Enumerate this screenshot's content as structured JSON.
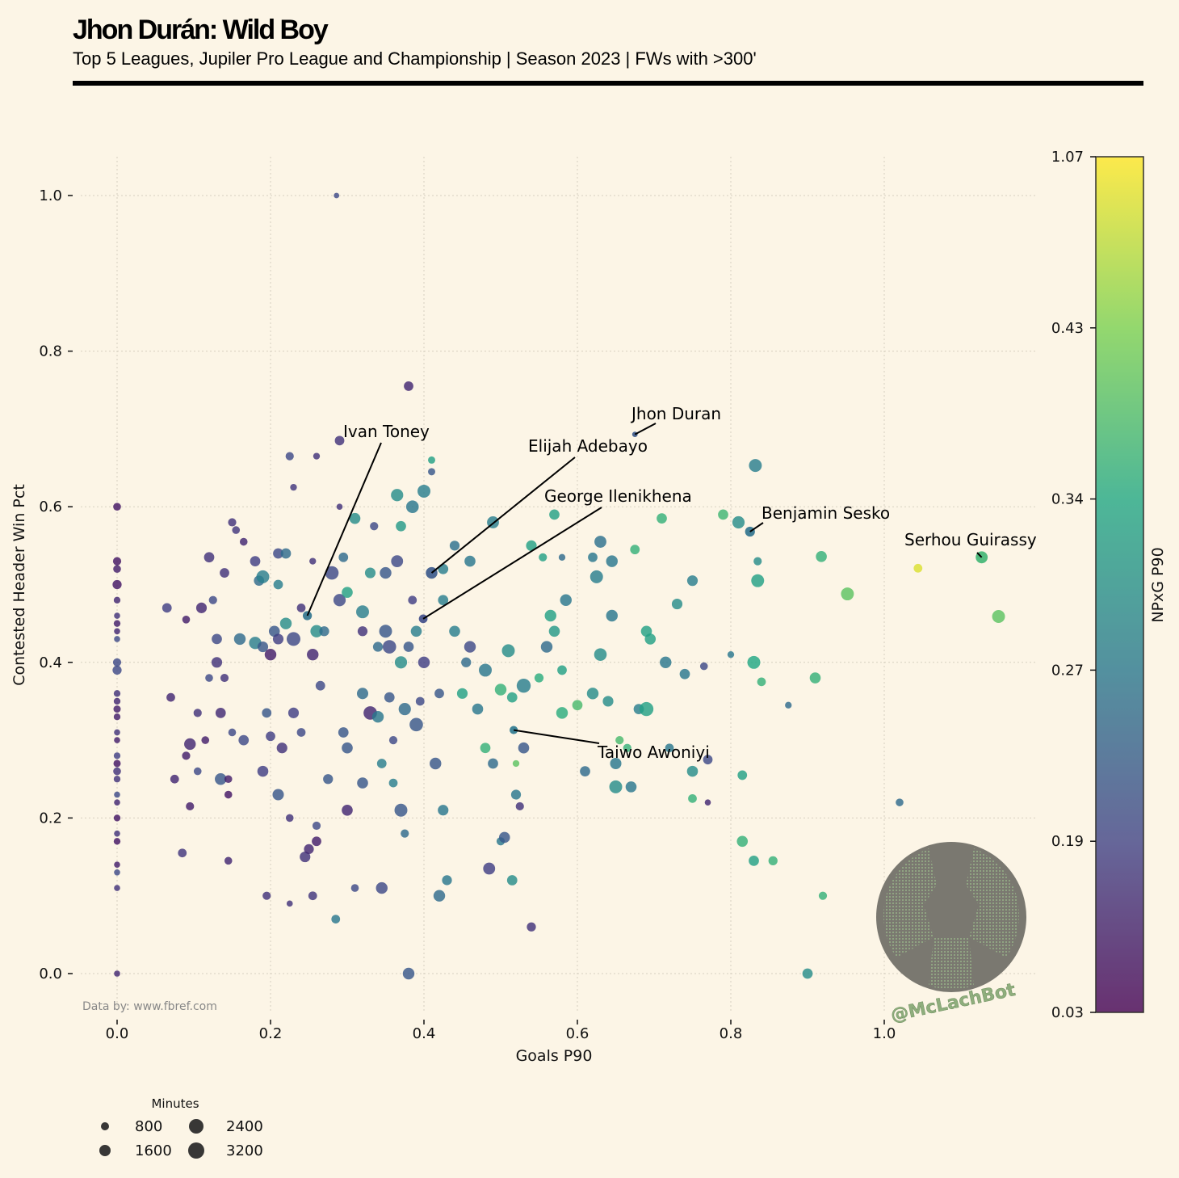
{
  "header": {
    "title": "Jhon Durán: Wild Boy",
    "subtitle": "Top 5 Leagues, Jupiler Pro League and Championship | Season 2023 | FWs with >300'"
  },
  "source": "Data by: www.fbref.com",
  "watermark": "@McLachBot",
  "chart_data": {
    "type": "scatter",
    "xlabel": "Goals P90",
    "ylabel": "Contested Header Win Pct",
    "xlim": [
      -0.06,
      1.2
    ],
    "ylim": [
      -0.05,
      1.05
    ],
    "xticks": [
      "0.0",
      "0.2",
      "0.4",
      "0.6",
      "0.8",
      "1.0"
    ],
    "yticks": [
      "0.0",
      "0.2",
      "0.4",
      "0.6",
      "0.8",
      "1.0"
    ],
    "grid": true,
    "colorbar": {
      "label": "NPxG P90",
      "ticks": [
        "0.03",
        "0.19",
        "0.27",
        "0.34",
        "0.43",
        "1.07"
      ]
    },
    "size_legend": {
      "title": "Minutes",
      "entries": [
        "800",
        "1600",
        "2400",
        "3200"
      ],
      "placement": "bottom-left"
    },
    "annotations": [
      {
        "name": "Jhon Duran",
        "x": 0.675,
        "y": 0.693,
        "npxg": 0.22,
        "minutes": 400
      },
      {
        "name": "Ivan Toney",
        "x": 0.248,
        "y": 0.46,
        "npxg": 0.26,
        "minutes": 1100
      },
      {
        "name": "Elijah Adebayo",
        "x": 0.41,
        "y": 0.515,
        "npxg": 0.22,
        "minutes": 1800
      },
      {
        "name": "George Ilenikhena",
        "x": 0.399,
        "y": 0.456,
        "npxg": 0.2,
        "minutes": 1000
      },
      {
        "name": "Taiwo Awoniyi",
        "x": 0.517,
        "y": 0.313,
        "npxg": 0.27,
        "minutes": 900
      },
      {
        "name": "Benjamin Sesko",
        "x": 0.825,
        "y": 0.568,
        "npxg": 0.26,
        "minutes": 1300
      },
      {
        "name": "Serhou Guirassy",
        "x": 1.127,
        "y": 0.535,
        "npxg": 0.37,
        "minutes": 1900
      }
    ],
    "points_format": [
      "goals_p90",
      "header_win_pct",
      "npxg_p90",
      "minutes"
    ],
    "points": [
      [
        0,
        0.6,
        0.08,
        800
      ],
      [
        0,
        0.53,
        0.08,
        900
      ],
      [
        0,
        0.52,
        0.1,
        800
      ],
      [
        0,
        0.5,
        0.08,
        1100
      ],
      [
        0,
        0.48,
        0.12,
        600
      ],
      [
        0,
        0.46,
        0.15,
        500
      ],
      [
        0,
        0.45,
        0.1,
        600
      ],
      [
        0,
        0.44,
        0.12,
        500
      ],
      [
        0,
        0.43,
        0.2,
        500
      ],
      [
        0,
        0.4,
        0.2,
        900
      ],
      [
        0,
        0.39,
        0.2,
        1100
      ],
      [
        0,
        0.36,
        0.15,
        600
      ],
      [
        0,
        0.35,
        0.12,
        600
      ],
      [
        0,
        0.34,
        0.1,
        700
      ],
      [
        0,
        0.33,
        0.1,
        600
      ],
      [
        0,
        0.31,
        0.15,
        500
      ],
      [
        0,
        0.3,
        0.1,
        500
      ],
      [
        0,
        0.28,
        0.18,
        600
      ],
      [
        0,
        0.27,
        0.08,
        700
      ],
      [
        0,
        0.26,
        0.15,
        800
      ],
      [
        0,
        0.25,
        0.15,
        600
      ],
      [
        0,
        0.23,
        0.2,
        500
      ],
      [
        0,
        0.22,
        0.12,
        500
      ],
      [
        0,
        0.2,
        0.08,
        600
      ],
      [
        0,
        0.18,
        0.15,
        500
      ],
      [
        0,
        0.17,
        0.08,
        600
      ],
      [
        0,
        0.14,
        0.1,
        500
      ],
      [
        0,
        0.13,
        0.2,
        500
      ],
      [
        0,
        0.11,
        0.15,
        500
      ],
      [
        0,
        0.0,
        0.12,
        500
      ],
      [
        0.065,
        0.47,
        0.18,
        1200
      ],
      [
        0.07,
        0.355,
        0.12,
        1000
      ],
      [
        0.09,
        0.455,
        0.1,
        800
      ],
      [
        0.09,
        0.28,
        0.1,
        900
      ],
      [
        0.095,
        0.295,
        0.12,
        1800
      ],
      [
        0.095,
        0.215,
        0.1,
        900
      ],
      [
        0.075,
        0.25,
        0.12,
        1000
      ],
      [
        0.085,
        0.155,
        0.16,
        1000
      ],
      [
        0.105,
        0.335,
        0.15,
        900
      ],
      [
        0.105,
        0.26,
        0.2,
        800
      ],
      [
        0.11,
        0.47,
        0.12,
        1500
      ],
      [
        0.115,
        0.3,
        0.1,
        800
      ],
      [
        0.12,
        0.38,
        0.2,
        800
      ],
      [
        0.13,
        0.43,
        0.2,
        1400
      ],
      [
        0.125,
        0.48,
        0.2,
        900
      ],
      [
        0.12,
        0.535,
        0.15,
        1400
      ],
      [
        0.13,
        0.4,
        0.15,
        1500
      ],
      [
        0.135,
        0.335,
        0.13,
        1400
      ],
      [
        0.135,
        0.25,
        0.22,
        1800
      ],
      [
        0.145,
        0.25,
        0.1,
        800
      ],
      [
        0.145,
        0.23,
        0.08,
        800
      ],
      [
        0.14,
        0.515,
        0.15,
        1200
      ],
      [
        0.14,
        0.38,
        0.15,
        900
      ],
      [
        0.145,
        0.145,
        0.12,
        800
      ],
      [
        0.15,
        0.58,
        0.15,
        900
      ],
      [
        0.155,
        0.57,
        0.16,
        800
      ],
      [
        0.15,
        0.31,
        0.2,
        800
      ],
      [
        0.16,
        0.43,
        0.25,
        1800
      ],
      [
        0.165,
        0.3,
        0.2,
        1400
      ],
      [
        0.165,
        0.555,
        0.12,
        800
      ],
      [
        0.18,
        0.425,
        0.28,
        2000
      ],
      [
        0.18,
        0.53,
        0.18,
        1400
      ],
      [
        0.185,
        0.505,
        0.25,
        1400
      ],
      [
        0.19,
        0.51,
        0.28,
        2200
      ],
      [
        0.19,
        0.42,
        0.22,
        1500
      ],
      [
        0.195,
        0.335,
        0.22,
        1200
      ],
      [
        0.19,
        0.26,
        0.18,
        1600
      ],
      [
        0.2,
        0.305,
        0.18,
        1200
      ],
      [
        0.195,
        0.1,
        0.15,
        900
      ],
      [
        0.2,
        0.41,
        0.1,
        1800
      ],
      [
        0.205,
        0.44,
        0.22,
        1600
      ],
      [
        0.21,
        0.54,
        0.2,
        1400
      ],
      [
        0.21,
        0.5,
        0.28,
        1200
      ],
      [
        0.21,
        0.43,
        0.18,
        1500
      ],
      [
        0.21,
        0.23,
        0.22,
        1700
      ],
      [
        0.215,
        0.29,
        0.15,
        1500
      ],
      [
        0.22,
        0.54,
        0.25,
        1400
      ],
      [
        0.22,
        0.45,
        0.3,
        1800
      ],
      [
        0.225,
        0.665,
        0.2,
        900
      ],
      [
        0.23,
        0.625,
        0.16,
        600
      ],
      [
        0.225,
        0.2,
        0.15,
        800
      ],
      [
        0.225,
        0.09,
        0.15,
        500
      ],
      [
        0.23,
        0.43,
        0.2,
        2500
      ],
      [
        0.23,
        0.335,
        0.18,
        1500
      ],
      [
        0.24,
        0.31,
        0.2,
        1000
      ],
      [
        0.24,
        0.47,
        0.15,
        1000
      ],
      [
        0.245,
        0.15,
        0.15,
        1500
      ],
      [
        0.25,
        0.16,
        0.12,
        1300
      ],
      [
        0.255,
        0.41,
        0.12,
        1800
      ],
      [
        0.255,
        0.53,
        0.15,
        600
      ],
      [
        0.26,
        0.665,
        0.15,
        600
      ],
      [
        0.26,
        0.44,
        0.3,
        2000
      ],
      [
        0.26,
        0.19,
        0.2,
        900
      ],
      [
        0.26,
        0.17,
        0.1,
        1200
      ],
      [
        0.255,
        0.1,
        0.16,
        1000
      ],
      [
        0.265,
        0.37,
        0.2,
        1200
      ],
      [
        0.27,
        0.44,
        0.25,
        1300
      ],
      [
        0.275,
        0.25,
        0.22,
        1300
      ],
      [
        0.28,
        0.515,
        0.2,
        2400
      ],
      [
        0.285,
        0.07,
        0.27,
        1000
      ],
      [
        0.29,
        0.685,
        0.15,
        1200
      ],
      [
        0.29,
        0.48,
        0.2,
        2000
      ],
      [
        0.29,
        0.6,
        0.15,
        500
      ],
      [
        0.295,
        0.535,
        0.25,
        1200
      ],
      [
        0.295,
        0.31,
        0.22,
        1400
      ],
      [
        0.3,
        0.49,
        0.33,
        1600
      ],
      [
        0.3,
        0.29,
        0.22,
        1600
      ],
      [
        0.3,
        0.21,
        0.12,
        1600
      ],
      [
        0.31,
        0.585,
        0.3,
        1600
      ],
      [
        0.31,
        0.11,
        0.2,
        800
      ],
      [
        0.32,
        0.44,
        0.15,
        1300
      ],
      [
        0.32,
        0.36,
        0.25,
        1700
      ],
      [
        0.32,
        0.245,
        0.22,
        1600
      ],
      [
        0.32,
        0.465,
        0.28,
        2200
      ],
      [
        0.33,
        0.335,
        0.12,
        2400
      ],
      [
        0.33,
        0.515,
        0.3,
        1500
      ],
      [
        0.335,
        0.575,
        0.2,
        900
      ],
      [
        0.34,
        0.42,
        0.25,
        1300
      ],
      [
        0.34,
        0.33,
        0.27,
        1800
      ],
      [
        0.345,
        0.27,
        0.28,
        1200
      ],
      [
        0.345,
        0.11,
        0.2,
        1800
      ],
      [
        0.35,
        0.515,
        0.22,
        1800
      ],
      [
        0.35,
        0.44,
        0.22,
        2200
      ],
      [
        0.355,
        0.355,
        0.22,
        1400
      ],
      [
        0.355,
        0.42,
        0.2,
        2400
      ],
      [
        0.36,
        0.245,
        0.28,
        1000
      ],
      [
        0.36,
        0.3,
        0.2,
        900
      ],
      [
        0.365,
        0.615,
        0.3,
        2000
      ],
      [
        0.365,
        0.53,
        0.2,
        1900
      ],
      [
        0.37,
        0.4,
        0.3,
        2000
      ],
      [
        0.37,
        0.575,
        0.32,
        1400
      ],
      [
        0.37,
        0.21,
        0.22,
        2200
      ],
      [
        0.375,
        0.34,
        0.25,
        2000
      ],
      [
        0.375,
        0.18,
        0.25,
        900
      ],
      [
        0.38,
        0.42,
        0.22,
        1400
      ],
      [
        0.38,
        0.755,
        0.12,
        1200
      ],
      [
        0.38,
        0.0,
        0.22,
        1800
      ],
      [
        0.385,
        0.6,
        0.27,
        2100
      ],
      [
        0.385,
        0.48,
        0.18,
        1000
      ],
      [
        0.39,
        0.32,
        0.22,
        2400
      ],
      [
        0.395,
        0.35,
        0.2,
        1000
      ],
      [
        0.4,
        0.62,
        0.28,
        2200
      ],
      [
        0.4,
        0.4,
        0.18,
        1800
      ],
      [
        0.41,
        0.645,
        0.22,
        700
      ],
      [
        0.41,
        0.66,
        0.33,
        700
      ],
      [
        0.415,
        0.27,
        0.22,
        1800
      ],
      [
        0.42,
        0.1,
        0.25,
        1800
      ],
      [
        0.42,
        0.36,
        0.22,
        1200
      ],
      [
        0.425,
        0.52,
        0.28,
        1400
      ],
      [
        0.425,
        0.48,
        0.28,
        1400
      ],
      [
        0.425,
        0.21,
        0.27,
        1500
      ],
      [
        0.43,
        0.12,
        0.27,
        1300
      ],
      [
        0.44,
        0.55,
        0.26,
        1300
      ],
      [
        0.44,
        0.44,
        0.28,
        1600
      ],
      [
        0.45,
        0.36,
        0.33,
        1500
      ],
      [
        0.455,
        0.4,
        0.25,
        1300
      ],
      [
        0.46,
        0.53,
        0.27,
        1600
      ],
      [
        0.46,
        0.42,
        0.2,
        1800
      ],
      [
        0.47,
        0.34,
        0.27,
        1600
      ],
      [
        0.48,
        0.29,
        0.36,
        1400
      ],
      [
        0.48,
        0.39,
        0.27,
        2200
      ],
      [
        0.49,
        0.58,
        0.28,
        1900
      ],
      [
        0.49,
        0.27,
        0.25,
        1400
      ],
      [
        0.5,
        0.17,
        0.27,
        900
      ],
      [
        0.5,
        0.365,
        0.36,
        1800
      ],
      [
        0.505,
        0.175,
        0.22,
        1600
      ],
      [
        0.485,
        0.135,
        0.18,
        1900
      ],
      [
        0.51,
        0.415,
        0.3,
        2200
      ],
      [
        0.515,
        0.355,
        0.33,
        1400
      ],
      [
        0.515,
        0.12,
        0.3,
        1400
      ],
      [
        0.52,
        0.27,
        0.4,
        600
      ],
      [
        0.52,
        0.23,
        0.27,
        1300
      ],
      [
        0.525,
        0.215,
        0.15,
        900
      ],
      [
        0.53,
        0.37,
        0.28,
        2600
      ],
      [
        0.53,
        0.29,
        0.22,
        1600
      ],
      [
        0.54,
        0.55,
        0.33,
        1500
      ],
      [
        0.54,
        0.06,
        0.15,
        1100
      ],
      [
        0.55,
        0.38,
        0.35,
        1100
      ],
      [
        0.555,
        0.535,
        0.33,
        900
      ],
      [
        0.56,
        0.42,
        0.25,
        1800
      ],
      [
        0.565,
        0.46,
        0.33,
        1800
      ],
      [
        0.57,
        0.59,
        0.33,
        1400
      ],
      [
        0.57,
        0.44,
        0.32,
        1600
      ],
      [
        0.58,
        0.335,
        0.35,
        1800
      ],
      [
        0.58,
        0.39,
        0.33,
        1200
      ],
      [
        0.58,
        0.535,
        0.25,
        600
      ],
      [
        0.585,
        0.48,
        0.27,
        1800
      ],
      [
        0.6,
        0.345,
        0.38,
        1400
      ],
      [
        0.61,
        0.26,
        0.25,
        1400
      ],
      [
        0.62,
        0.36,
        0.3,
        1800
      ],
      [
        0.62,
        0.535,
        0.27,
        1200
      ],
      [
        0.625,
        0.51,
        0.28,
        2200
      ],
      [
        0.63,
        0.555,
        0.26,
        1900
      ],
      [
        0.63,
        0.41,
        0.3,
        2100
      ],
      [
        0.64,
        0.35,
        0.3,
        1500
      ],
      [
        0.645,
        0.53,
        0.27,
        1800
      ],
      [
        0.645,
        0.46,
        0.27,
        1800
      ],
      [
        0.65,
        0.27,
        0.27,
        1700
      ],
      [
        0.65,
        0.24,
        0.3,
        2200
      ],
      [
        0.655,
        0.3,
        0.38,
        900
      ],
      [
        0.665,
        0.29,
        0.36,
        900
      ],
      [
        0.67,
        0.24,
        0.27,
        1600
      ],
      [
        0.675,
        0.545,
        0.36,
        1200
      ],
      [
        0.68,
        0.34,
        0.28,
        1400
      ],
      [
        0.69,
        0.44,
        0.33,
        1600
      ],
      [
        0.69,
        0.34,
        0.33,
        2600
      ],
      [
        0.695,
        0.43,
        0.33,
        1600
      ],
      [
        0.71,
        0.585,
        0.36,
        1400
      ],
      [
        0.715,
        0.4,
        0.27,
        1800
      ],
      [
        0.72,
        0.29,
        0.27,
        1000
      ],
      [
        0.73,
        0.475,
        0.3,
        1500
      ],
      [
        0.74,
        0.385,
        0.27,
        1400
      ],
      [
        0.75,
        0.505,
        0.28,
        1500
      ],
      [
        0.75,
        0.26,
        0.3,
        1600
      ],
      [
        0.75,
        0.225,
        0.36,
        1000
      ],
      [
        0.77,
        0.275,
        0.2,
        1200
      ],
      [
        0.765,
        0.395,
        0.2,
        800
      ],
      [
        0.77,
        0.22,
        0.12,
        500
      ],
      [
        0.79,
        0.59,
        0.37,
        1400
      ],
      [
        0.8,
        0.41,
        0.27,
        600
      ],
      [
        0.81,
        0.58,
        0.3,
        2000
      ],
      [
        0.815,
        0.255,
        0.33,
        1200
      ],
      [
        0.815,
        0.17,
        0.36,
        1600
      ],
      [
        0.83,
        0.145,
        0.33,
        1400
      ],
      [
        0.83,
        0.4,
        0.34,
        2200
      ],
      [
        0.835,
        0.505,
        0.33,
        2200
      ],
      [
        0.84,
        0.375,
        0.36,
        1000
      ],
      [
        0.835,
        0.53,
        0.3,
        900
      ],
      [
        0.855,
        0.145,
        0.36,
        1100
      ],
      [
        0.875,
        0.345,
        0.25,
        600
      ],
      [
        0.9,
        0.0,
        0.3,
        1400
      ],
      [
        0.91,
        0.38,
        0.36,
        1600
      ],
      [
        0.92,
        0.1,
        0.36,
        900
      ],
      [
        0.918,
        0.536,
        0.36,
        1600
      ],
      [
        0.952,
        0.488,
        0.4,
        2200
      ],
      [
        1.02,
        0.22,
        0.25,
        800
      ],
      [
        1.044,
        0.521,
        0.9,
        1000
      ],
      [
        1.149,
        0.459,
        0.4,
        2200
      ],
      [
        0.832,
        0.653,
        0.28,
        2200
      ],
      [
        0.286,
        1.0,
        0.2,
        400
      ],
      [
        0.39,
        0.44,
        0.28,
        1600
      ]
    ]
  }
}
